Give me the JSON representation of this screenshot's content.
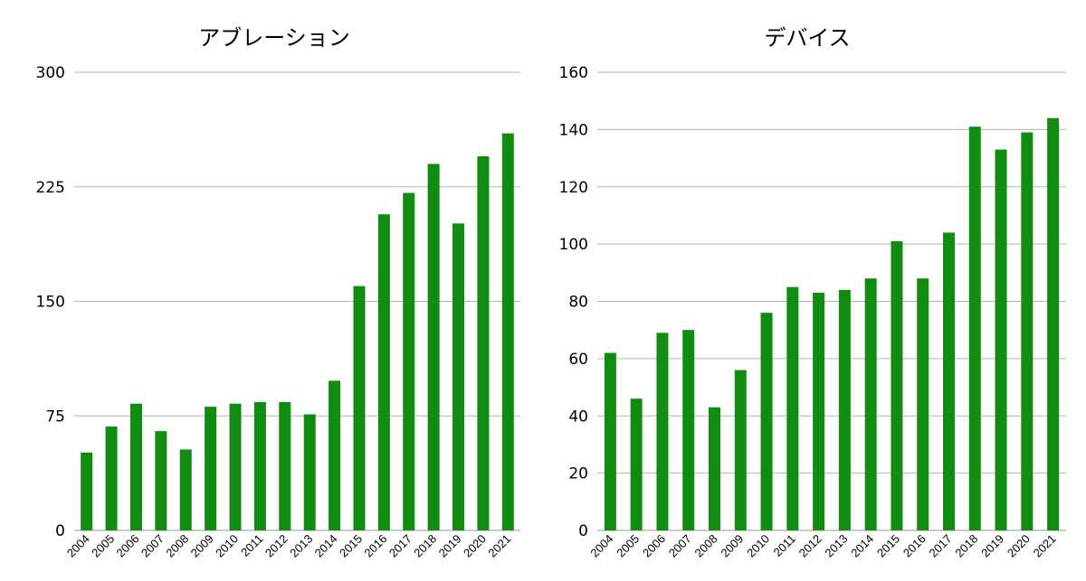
{
  "chart_data": [
    {
      "type": "bar",
      "title": "アブレーション",
      "xlabel": "",
      "ylabel": "",
      "categories": [
        "2004",
        "2005",
        "2006",
        "2007",
        "2008",
        "2009",
        "2010",
        "2011",
        "2012",
        "2013",
        "2014",
        "2015",
        "2016",
        "2017",
        "2018",
        "2019",
        "2020",
        "2021"
      ],
      "values": [
        51,
        68,
        83,
        65,
        53,
        81,
        83,
        84,
        84,
        76,
        98,
        160,
        207,
        221,
        240,
        201,
        245,
        260
      ],
      "ylim": [
        0,
        300
      ],
      "yticks": [
        "0",
        "75",
        "150",
        "225",
        "300"
      ],
      "grid": true,
      "legend": "none",
      "bar_color": "#108c10"
    },
    {
      "type": "bar",
      "title": "デバイス",
      "xlabel": "",
      "ylabel": "",
      "categories": [
        "2004",
        "2005",
        "2006",
        "2007",
        "2008",
        "2009",
        "2010",
        "2011",
        "2012",
        "2013",
        "2014",
        "2015",
        "2016",
        "2017",
        "2018",
        "2019",
        "2020",
        "2021"
      ],
      "values": [
        62,
        46,
        69,
        70,
        43,
        56,
        76,
        85,
        83,
        84,
        88,
        101,
        88,
        104,
        141,
        133,
        139,
        144
      ],
      "ylim": [
        0,
        160
      ],
      "yticks": [
        "0",
        "20",
        "40",
        "60",
        "80",
        "100",
        "120",
        "140",
        "160"
      ],
      "grid": true,
      "legend": "none",
      "bar_color": "#108c10"
    }
  ]
}
